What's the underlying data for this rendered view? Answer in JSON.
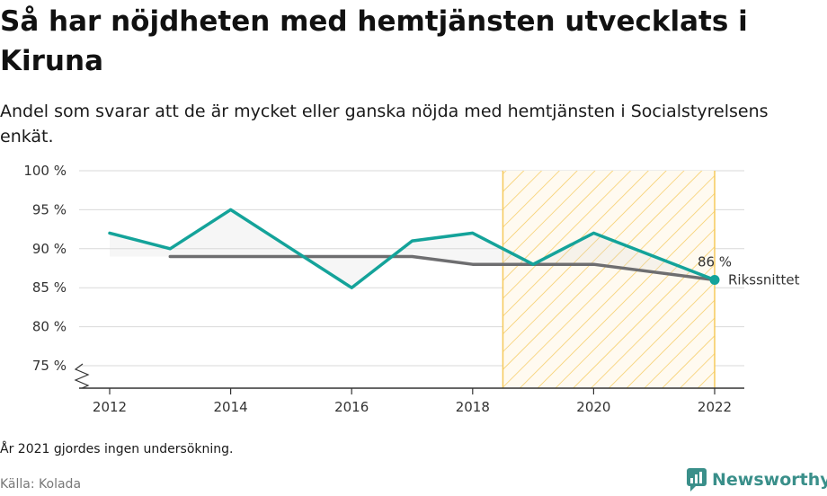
{
  "title": "Så har nöjdheten med hemtjänsten utvecklats i Kiruna",
  "subtitle": "Andel som svarar att de är mycket eller ganska nöjda med hemtjänsten i Socialstyrelsens enkät.",
  "note": "År 2021 gjordes ingen undersökning.",
  "source": "Källa: Kolada",
  "brand": "Newsworthy",
  "colors": {
    "kiruna": "#14a39a",
    "riket": "#6e6e70",
    "highlight": "#f5c95a",
    "grid": "#d9d9d9"
  },
  "chart_data": {
    "type": "line",
    "title": "Så har nöjdheten med hemtjänsten utvecklats i Kiruna",
    "xlabel": "",
    "ylabel": "",
    "x_ticks": [
      "2012",
      "2014",
      "2016",
      "2018",
      "2020",
      "2022"
    ],
    "y_ticks": [
      "100 %",
      "95 %",
      "90 %",
      "85 %",
      "80 %",
      "75 %"
    ],
    "xlim": [
      2011.5,
      2022.5
    ],
    "ylim": [
      72,
      100
    ],
    "y_axis_broken": true,
    "grid": true,
    "highlight_range": [
      2018.5,
      2022
    ],
    "end_label": "86 %",
    "series": [
      {
        "name": "",
        "color": "#14a39a",
        "x": [
          2012,
          2013,
          2014,
          2015,
          2016,
          2017,
          2018,
          2019,
          2020,
          2022
        ],
        "values": [
          92,
          90,
          95,
          90,
          85,
          91,
          92,
          88,
          92,
          86
        ]
      },
      {
        "name": "Rikssnittet",
        "color": "#6e6e70",
        "x": [
          2013,
          2014,
          2015,
          2016,
          2017,
          2018,
          2019,
          2020,
          2022
        ],
        "values": [
          89,
          89,
          89,
          89,
          89,
          88,
          88,
          88,
          86
        ]
      }
    ]
  }
}
